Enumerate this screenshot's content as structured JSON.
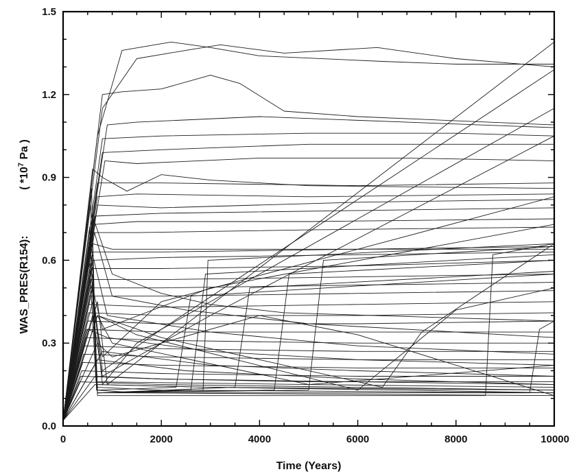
{
  "chart_data": {
    "type": "line",
    "title": "",
    "xlabel": "Time (Years)",
    "ylabel": "WAS_PRES(R154):",
    "yunit": "( *10",
    "yunit_exp": "7",
    "yunit_tail": " Pa )",
    "xlim": [
      0,
      10000
    ],
    "ylim": [
      0.0,
      1.5
    ],
    "x_ticks": [
      0,
      2000,
      4000,
      6000,
      8000,
      10000
    ],
    "x_tick_labels": [
      "0",
      "2000",
      "4000",
      "6000",
      "8000",
      "10000"
    ],
    "y_ticks": [
      0.0,
      0.3,
      0.6,
      0.9,
      1.2,
      1.5
    ],
    "y_tick_labels": [
      "0.0",
      "0.3",
      "0.6",
      "0.9",
      "1.2",
      "1.5"
    ],
    "grid": false,
    "legend": "none",
    "line_color": "#1a1a1a",
    "series": [
      {
        "x": [
          0,
          700,
          1200,
          2200,
          3000,
          4000,
          6500,
          8000,
          10000
        ],
        "y": [
          0.02,
          1.05,
          1.36,
          1.39,
          1.37,
          1.34,
          1.32,
          1.31,
          1.31
        ]
      },
      {
        "x": [
          0,
          800,
          1500,
          2500,
          3200,
          4500,
          6400,
          8000,
          10000
        ],
        "y": [
          0.02,
          1.15,
          1.33,
          1.36,
          1.38,
          1.35,
          1.37,
          1.33,
          1.3
        ]
      },
      {
        "x": [
          0,
          800,
          1200,
          2000,
          3000,
          3600,
          4500,
          6000,
          10000
        ],
        "y": [
          0.02,
          1.2,
          1.21,
          1.22,
          1.27,
          1.24,
          1.14,
          1.12,
          1.09
        ]
      },
      {
        "x": [
          0,
          900,
          1500,
          4000,
          7000,
          10000
        ],
        "y": [
          0.02,
          1.09,
          1.1,
          1.12,
          1.1,
          1.08
        ]
      },
      {
        "x": [
          0,
          800,
          2000,
          5000,
          8000,
          10000
        ],
        "y": [
          0.02,
          1.04,
          1.05,
          1.06,
          1.06,
          1.05
        ]
      },
      {
        "x": [
          0,
          800,
          2000,
          5000,
          10000
        ],
        "y": [
          0.02,
          0.99,
          1.0,
          1.02,
          1.02
        ]
      },
      {
        "x": [
          0,
          850,
          1500,
          4000,
          7000,
          10000
        ],
        "y": [
          0.02,
          0.96,
          0.95,
          0.97,
          0.97,
          0.96
        ]
      },
      {
        "x": [
          0,
          600,
          800,
          1300,
          2000,
          3000,
          5000,
          10000
        ],
        "y": [
          0.02,
          0.93,
          0.9,
          0.85,
          0.91,
          0.89,
          0.87,
          0.86
        ]
      },
      {
        "x": [
          0,
          700,
          2000,
          6000,
          10000
        ],
        "y": [
          0.02,
          0.88,
          0.88,
          0.87,
          0.88
        ]
      },
      {
        "x": [
          0,
          700,
          1500,
          5000,
          10000
        ],
        "y": [
          0.02,
          0.83,
          0.84,
          0.83,
          0.84
        ]
      },
      {
        "x": [
          0,
          700,
          2000,
          6000,
          10000
        ],
        "y": [
          0.02,
          0.8,
          0.79,
          0.81,
          0.82
        ]
      },
      {
        "x": [
          0,
          650,
          2000,
          6000,
          10000
        ],
        "y": [
          0.02,
          0.76,
          0.77,
          0.78,
          0.79
        ]
      },
      {
        "x": [
          0,
          650,
          1500,
          5000,
          10000
        ],
        "y": [
          0.02,
          0.73,
          0.74,
          0.74,
          0.75
        ]
      },
      {
        "x": [
          0,
          600,
          1500,
          5000,
          10000
        ],
        "y": [
          0.02,
          0.7,
          0.7,
          0.71,
          0.72
        ]
      },
      {
        "x": [
          0,
          600,
          1000,
          3000,
          6000,
          10000
        ],
        "y": [
          0.02,
          0.66,
          0.64,
          0.64,
          0.64,
          0.65
        ]
      },
      {
        "x": [
          0,
          600,
          2000,
          6000,
          10000
        ],
        "y": [
          0.02,
          0.63,
          0.63,
          0.64,
          0.64
        ]
      },
      {
        "x": [
          0,
          600,
          2000,
          6000,
          10000
        ],
        "y": [
          0.02,
          0.6,
          0.61,
          0.62,
          0.63
        ]
      },
      {
        "x": [
          0,
          580,
          2000,
          6000,
          10000
        ],
        "y": [
          0.02,
          0.57,
          0.57,
          0.58,
          0.6
        ]
      },
      {
        "x": [
          0,
          560,
          2000,
          6000,
          10000
        ],
        "y": [
          0.02,
          0.53,
          0.53,
          0.54,
          0.55
        ]
      },
      {
        "x": [
          0,
          550,
          2000,
          6000,
          10000
        ],
        "y": [
          0.02,
          0.5,
          0.5,
          0.51,
          0.52
        ]
      },
      {
        "x": [
          0,
          540,
          2000,
          6000,
          10000
        ],
        "y": [
          0.02,
          0.47,
          0.47,
          0.48,
          0.49
        ]
      },
      {
        "x": [
          0,
          530,
          2000,
          6000,
          10000
        ],
        "y": [
          0.02,
          0.44,
          0.43,
          0.44,
          0.45
        ]
      },
      {
        "x": [
          0,
          520,
          2000,
          6000,
          10000
        ],
        "y": [
          0.02,
          0.41,
          0.4,
          0.4,
          0.41
        ]
      },
      {
        "x": [
          0,
          500,
          2000,
          6000,
          10000
        ],
        "y": [
          0.02,
          0.38,
          0.37,
          0.37,
          0.38
        ]
      },
      {
        "x": [
          0,
          480,
          2000,
          6000,
          10000
        ],
        "y": [
          0.02,
          0.35,
          0.34,
          0.34,
          0.34
        ]
      },
      {
        "x": [
          0,
          460,
          2000,
          6000,
          10000
        ],
        "y": [
          0.02,
          0.32,
          0.31,
          0.3,
          0.3
        ]
      },
      {
        "x": [
          0,
          440,
          2000,
          6000,
          10000
        ],
        "y": [
          0.02,
          0.29,
          0.28,
          0.27,
          0.27
        ]
      },
      {
        "x": [
          0,
          420,
          2000,
          6000,
          10000
        ],
        "y": [
          0.02,
          0.26,
          0.25,
          0.24,
          0.24
        ]
      },
      {
        "x": [
          0,
          400,
          2000,
          6000,
          10000
        ],
        "y": [
          0.02,
          0.23,
          0.22,
          0.21,
          0.21
        ]
      },
      {
        "x": [
          0,
          380,
          2000,
          6000,
          10000
        ],
        "y": [
          0.02,
          0.2,
          0.19,
          0.18,
          0.18
        ]
      },
      {
        "x": [
          0,
          360,
          2000,
          6000,
          10000
        ],
        "y": [
          0.02,
          0.18,
          0.17,
          0.16,
          0.15
        ]
      },
      {
        "x": [
          0,
          340,
          2000,
          6000,
          10000
        ],
        "y": [
          0.02,
          0.16,
          0.15,
          0.14,
          0.13
        ]
      },
      {
        "x": [
          0,
          580,
          680,
          1500,
          10000
        ],
        "y": [
          0.02,
          0.86,
          0.13,
          0.12,
          0.11
        ]
      },
      {
        "x": [
          0,
          560,
          680,
          2000,
          10000
        ],
        "y": [
          0.02,
          0.8,
          0.14,
          0.13,
          0.12
        ]
      },
      {
        "x": [
          0,
          540,
          680,
          3000,
          10000
        ],
        "y": [
          0.02,
          0.72,
          0.15,
          0.14,
          0.13
        ]
      },
      {
        "x": [
          0,
          520,
          670,
          5000,
          10000
        ],
        "y": [
          0.02,
          0.65,
          0.16,
          0.15,
          0.14
        ]
      },
      {
        "x": [
          0,
          620,
          1000,
          2000,
          3000,
          4500,
          10000
        ],
        "y": [
          0.02,
          0.75,
          0.55,
          0.48,
          0.44,
          0.41,
          0.38
        ]
      },
      {
        "x": [
          0,
          640,
          1000,
          2500,
          5000,
          10000
        ],
        "y": [
          0.02,
          0.7,
          0.47,
          0.42,
          0.37,
          0.32
        ]
      },
      {
        "x": [
          0,
          600,
          900,
          3000,
          6000,
          10000
        ],
        "y": [
          0.02,
          0.62,
          0.4,
          0.34,
          0.29,
          0.26
        ]
      },
      {
        "x": [
          0,
          500,
          900,
          3000,
          6000,
          10000
        ],
        "y": [
          0.02,
          0.35,
          0.32,
          0.27,
          0.24,
          0.22
        ]
      },
      {
        "x": [
          0,
          600,
          700,
          2300,
          2600,
          10000
        ],
        "y": [
          0.02,
          0.6,
          0.13,
          0.14,
          0.47,
          0.55
        ]
      },
      {
        "x": [
          0,
          600,
          700,
          2600,
          2900,
          10000
        ],
        "y": [
          0.02,
          0.58,
          0.12,
          0.13,
          0.55,
          0.62
        ]
      },
      {
        "x": [
          0,
          600,
          700,
          2850,
          2950,
          10000
        ],
        "y": [
          0.02,
          0.55,
          0.12,
          0.13,
          0.6,
          0.66
        ]
      },
      {
        "x": [
          0,
          600,
          700,
          3500,
          3800,
          10000
        ],
        "y": [
          0.02,
          0.52,
          0.12,
          0.14,
          0.5,
          0.56
        ]
      },
      {
        "x": [
          0,
          600,
          700,
          4300,
          4600,
          10000
        ],
        "y": [
          0.02,
          0.5,
          0.12,
          0.13,
          0.55,
          0.6
        ]
      },
      {
        "x": [
          0,
          600,
          700,
          5000,
          5300,
          10000
        ],
        "y": [
          0.02,
          0.5,
          0.12,
          0.13,
          0.6,
          0.65
        ]
      },
      {
        "x": [
          0,
          600,
          700,
          8600,
          8750,
          10000
        ],
        "y": [
          0.02,
          0.5,
          0.11,
          0.11,
          0.62,
          0.66
        ]
      },
      {
        "x": [
          0,
          600,
          700,
          9500,
          9700,
          10000
        ],
        "y": [
          0.02,
          0.5,
          0.12,
          0.12,
          0.35,
          0.38
        ]
      },
      {
        "x": [
          0,
          700,
          900,
          10000
        ],
        "y": [
          0.02,
          0.45,
          0.15,
          1.39
        ]
      },
      {
        "x": [
          0,
          600,
          800,
          2000,
          10000
        ],
        "y": [
          0.02,
          0.5,
          0.2,
          0.35,
          1.29
        ]
      },
      {
        "x": [
          0,
          600,
          800,
          1500,
          10000
        ],
        "y": [
          0.02,
          0.5,
          0.15,
          0.3,
          1.15
        ]
      },
      {
        "x": [
          0,
          600,
          800,
          3000,
          10000
        ],
        "y": [
          0.02,
          0.4,
          0.18,
          0.4,
          1.05
        ]
      },
      {
        "x": [
          0,
          600,
          800,
          2000,
          10000
        ],
        "y": [
          0.02,
          0.45,
          0.25,
          0.45,
          0.83
        ]
      },
      {
        "x": [
          0,
          600,
          800,
          3000,
          10000
        ],
        "y": [
          0.02,
          0.5,
          0.35,
          0.5,
          0.73
        ]
      },
      {
        "x": [
          0,
          700,
          1000,
          5000,
          10000
        ],
        "y": [
          0.02,
          0.4,
          0.3,
          0.15,
          0.22
        ]
      },
      {
        "x": [
          0,
          700,
          1500,
          6000,
          8000,
          10000
        ],
        "y": [
          0.02,
          0.4,
          0.33,
          0.13,
          0.42,
          0.5
        ]
      },
      {
        "x": [
          0,
          700,
          2000,
          6500,
          7300,
          10000
        ],
        "y": [
          0.02,
          0.4,
          0.32,
          0.14,
          0.34,
          0.66
        ]
      },
      {
        "x": [
          0,
          700,
          1000,
          4000,
          6000,
          10000
        ],
        "y": [
          0.02,
          0.3,
          0.25,
          0.4,
          0.33,
          0.11
        ]
      },
      {
        "x": [
          0,
          800,
          3000,
          6000,
          10000
        ],
        "y": [
          0.02,
          0.27,
          0.22,
          0.2,
          0.18
        ]
      },
      {
        "x": [
          0,
          700,
          2500,
          6000,
          10000
        ],
        "y": [
          0.02,
          0.24,
          0.2,
          0.17,
          0.15
        ]
      },
      {
        "x": [
          0,
          650,
          2000,
          5000,
          10000
        ],
        "y": [
          0.02,
          0.18,
          0.17,
          0.16,
          0.16
        ]
      },
      {
        "x": [
          0,
          650,
          3000,
          7000,
          10000
        ],
        "y": [
          0.02,
          0.15,
          0.14,
          0.13,
          0.12
        ]
      }
    ]
  }
}
